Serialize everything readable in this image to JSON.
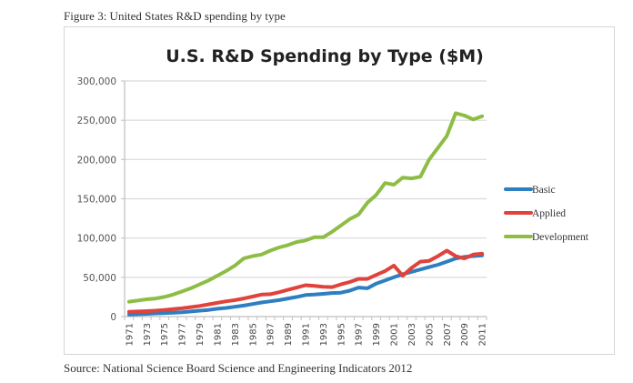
{
  "figure_caption": "Figure 3: United States R&D spending by type",
  "source_note": "Source: National Science Board Science and Engineering Indicators 2012",
  "chart_data": {
    "type": "line",
    "title": "U.S. R&D Spending by Type ($M)",
    "xlabel": "",
    "ylabel": "",
    "ylim": [
      0,
      300000
    ],
    "yticks": [
      0,
      50000,
      100000,
      150000,
      200000,
      250000,
      300000
    ],
    "ytick_labels": [
      "0",
      "50,000",
      "100,000",
      "150,000",
      "200,000",
      "250,000",
      "300,000"
    ],
    "grid": true,
    "legend_position": "right",
    "x": [
      1971,
      1972,
      1973,
      1974,
      1975,
      1976,
      1977,
      1978,
      1979,
      1980,
      1981,
      1982,
      1983,
      1984,
      1985,
      1986,
      1987,
      1988,
      1989,
      1990,
      1991,
      1992,
      1993,
      1994,
      1995,
      1996,
      1997,
      1998,
      1999,
      2000,
      2001,
      2002,
      2003,
      2004,
      2005,
      2006,
      2007,
      2008,
      2009,
      2010,
      2011
    ],
    "xtick_labels": [
      "1971",
      "1973",
      "1975",
      "1977",
      "1979",
      "1981",
      "1983",
      "1985",
      "1987",
      "1989",
      "1991",
      "1993",
      "1995",
      "1997",
      "1999",
      "2001",
      "2003",
      "2005",
      "2007",
      "2009",
      "2011"
    ],
    "series": [
      {
        "name": "Basic",
        "color": "#2e7fc1",
        "values": [
          2500,
          3000,
          3500,
          4000,
          4500,
          5000,
          5500,
          6500,
          7500,
          8500,
          10000,
          11000,
          12500,
          14000,
          16000,
          18000,
          19500,
          21000,
          23000,
          25000,
          27500,
          28000,
          29000,
          30000,
          30500,
          33000,
          37000,
          36000,
          42000,
          46000,
          50000,
          54000,
          57000,
          60000,
          63000,
          66000,
          70000,
          74000,
          76000,
          77000,
          78000
        ]
      },
      {
        "name": "Applied",
        "color": "#e0423c",
        "values": [
          6000,
          6500,
          7000,
          7500,
          8500,
          9500,
          10500,
          12000,
          13500,
          15500,
          17500,
          19500,
          21000,
          23000,
          25500,
          28000,
          28500,
          31000,
          34000,
          37000,
          40000,
          39000,
          38000,
          37500,
          41000,
          44000,
          48000,
          48000,
          53000,
          58000,
          65000,
          52000,
          62000,
          70000,
          71000,
          77000,
          84000,
          77000,
          74000,
          79000,
          80000
        ]
      },
      {
        "name": "Development",
        "color": "#8dbd45",
        "values": [
          19000,
          20500,
          22000,
          23000,
          25000,
          28000,
          32000,
          36000,
          41000,
          46000,
          52000,
          58000,
          65000,
          74000,
          77000,
          79000,
          84000,
          88000,
          91000,
          95000,
          97000,
          101000,
          101000,
          108000,
          116000,
          124000,
          130000,
          145000,
          155000,
          170000,
          168000,
          177000,
          176000,
          178000,
          200000,
          215000,
          230000,
          259000,
          256000,
          251000,
          255000
        ]
      }
    ]
  },
  "colors": {
    "gridline": "#d9d9d9",
    "axis": "#bfbfbf",
    "frame": "#d6d6d6"
  }
}
